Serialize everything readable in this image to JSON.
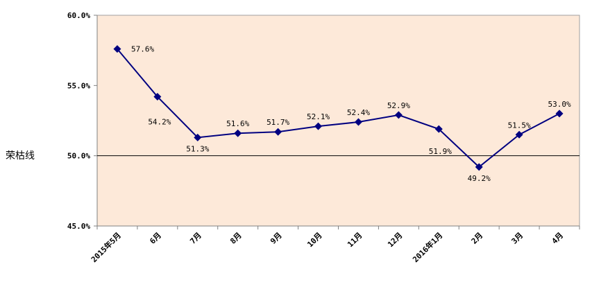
{
  "chart_data": {
    "type": "line",
    "title": "",
    "xlabel": "",
    "ylabel": "荣枯线",
    "categories": [
      "2015年5月",
      "6月",
      "7月",
      "8月",
      "9月",
      "10月",
      "11月",
      "12月",
      "2016年1月",
      "2月",
      "3月",
      "4月"
    ],
    "series": [
      {
        "values": [
          57.6,
          54.2,
          51.3,
          51.6,
          51.7,
          52.1,
          52.4,
          52.9,
          51.9,
          49.2,
          51.5,
          53.0
        ],
        "labels": [
          "57.6%",
          "54.2%",
          "51.3%",
          "51.6%",
          "51.7%",
          "52.1%",
          "52.4%",
          "52.9%",
          "51.9%",
          "49.2%",
          "51.5%",
          "53.0%"
        ]
      }
    ],
    "ylim": [
      45,
      60
    ],
    "yticks": [
      {
        "value": 60,
        "label": "60.0%"
      },
      {
        "value": 55,
        "label": "55.0%"
      },
      {
        "value": 50,
        "label": "50.0%"
      },
      {
        "value": 45,
        "label": "45.0%"
      }
    ],
    "reference_line": {
      "value": 50,
      "label": "荣枯线"
    },
    "grid": false,
    "legend": "none",
    "colors": {
      "plot_background": "#fde9d9",
      "line": "#000080",
      "marker": "#000080",
      "reference_line": "#000000"
    },
    "marker": "diamond"
  }
}
